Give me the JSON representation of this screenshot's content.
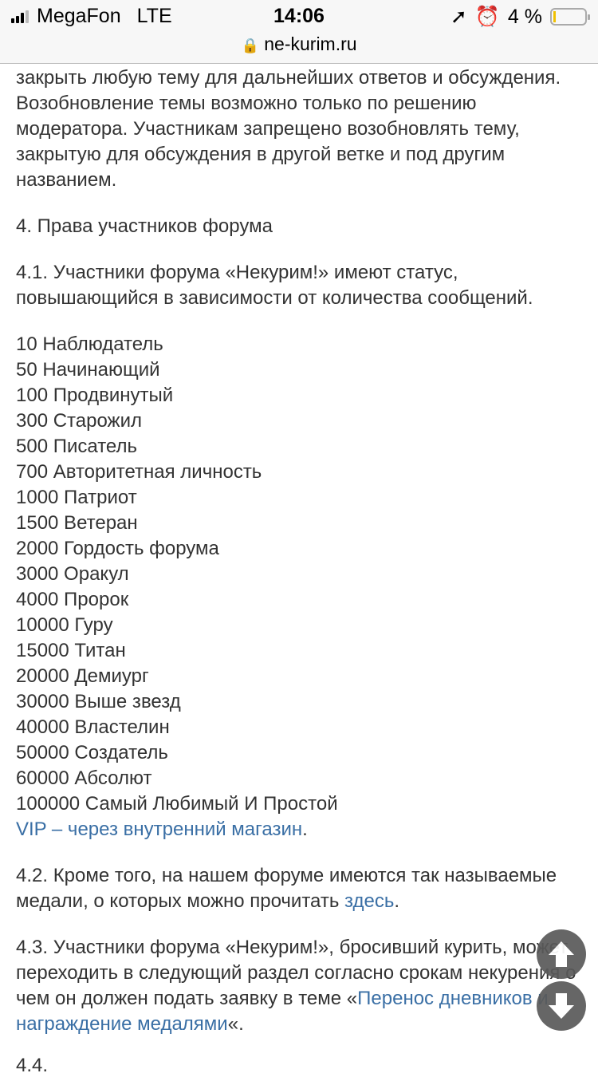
{
  "status_bar": {
    "carrier": "MegaFon",
    "network": "LTE",
    "time": "14:06",
    "battery": "4 %",
    "battery_level": 0.04
  },
  "browser": {
    "url": "ne-kurim.ru"
  },
  "content": {
    "intro_lines": [
      "закрыть любую тему для дальнейших ответов и обсуждения. Возобновление темы возможно только по решению модератора. Участникам запрещено возобновлять тему, закрытую для обсуждения в другой ветке и под другим названием."
    ],
    "section4_title": "4. Права участников форума",
    "p41": "4.1. Участники форума «Некурим!» имеют статус, повышающийся в зависимости от количества сообщений.",
    "ranks": [
      "10 Наблюдатель",
      "50 Начинающий",
      "100 Продвинутый",
      "300 Старожил",
      "500 Писатель",
      "700 Авторитетная личность",
      "1000 Патриот",
      "1500 Ветеран",
      "2000 Гордость форума",
      "3000 Оракул",
      "4000 Пророк",
      "10000 Гуру",
      "15000 Титан",
      "20000 Демиург",
      "30000 Выше звезд",
      "40000 Властелин",
      "50000 Создатель",
      "60000 Абсолют",
      "100000 Самый Любимый И Простой"
    ],
    "vip_link": "VIP – через внутренний магазин",
    "vip_suffix": ".",
    "p42_text": "4.2. Кроме того, на нашем форуме имеются так называемые медали, о которых можно прочитать ",
    "p42_link": "здесь",
    "p42_suffix": ".",
    "p43_text": "4.3. Участники форума «Некурим!», бросивший курить, может переходить в следующий раздел согласно срокам некурения о чем он должен подать заявку в теме ",
    "p43_prefix": "«",
    "p43_link": "Перенос дневников и награждение медалями",
    "p43_suffix": "«.",
    "partial_next": "4.4."
  },
  "colors": {
    "link": "#3a6fa5",
    "text": "#333333",
    "scroll_button": "#5a5a5a"
  }
}
